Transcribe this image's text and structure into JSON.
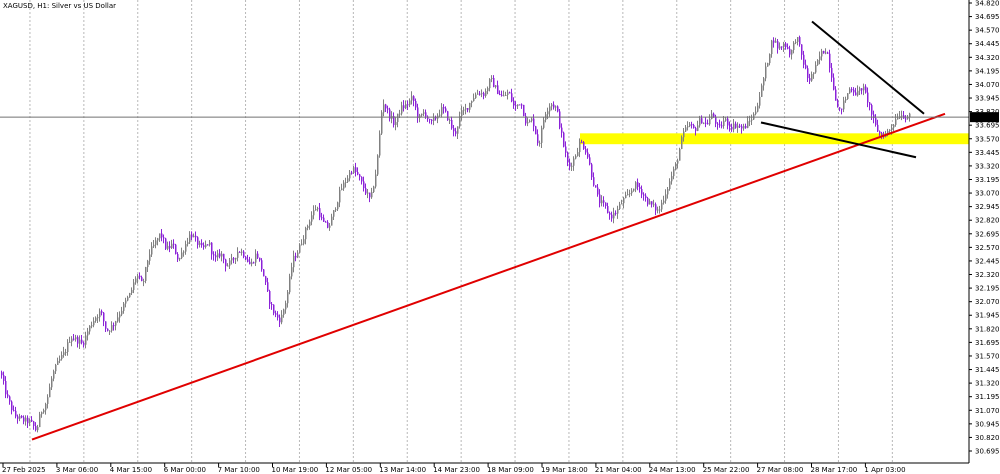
{
  "chart_data": {
    "type": "candlestick",
    "title": "XAGUSD, H1:  Silver vs US Dollar",
    "current_price": "33.769",
    "y_ticks": [
      "34.820",
      "34.695",
      "34.570",
      "34.445",
      "34.320",
      "34.195",
      "34.070",
      "33.945",
      "33.820",
      "33.695",
      "33.570",
      "33.445",
      "33.320",
      "33.195",
      "33.070",
      "32.945",
      "32.820",
      "32.695",
      "32.570",
      "32.445",
      "32.320",
      "32.195",
      "32.070",
      "31.945",
      "31.820",
      "31.695",
      "31.570",
      "31.445",
      "31.320",
      "31.195",
      "31.070",
      "30.945",
      "30.820",
      "30.695"
    ],
    "ylim": [
      30.64,
      34.83
    ],
    "x_ticks": [
      "27 Feb 2025",
      "3 Mar 06:00",
      "4 Mar 15:00",
      "6 Mar 00:00",
      "7 Mar 10:00",
      "10 Mar 19:00",
      "12 Mar 05:00",
      "13 Mar 14:00",
      "14 Mar 23:00",
      "18 Mar 09:00",
      "19 Mar 18:00",
      "21 Mar 04:00",
      "24 Mar 13:00",
      "25 Mar 22:00",
      "27 Mar 08:00",
      "28 Mar 17:00",
      "1 Apr 03:00"
    ],
    "price_path": [
      [
        0,
        31.42
      ],
      [
        6,
        31.2
      ],
      [
        14,
        31.02
      ],
      [
        22,
        30.98
      ],
      [
        30,
        30.96
      ],
      [
        36,
        30.88
      ],
      [
        40,
        31.05
      ],
      [
        46,
        31.15
      ],
      [
        52,
        31.4
      ],
      [
        58,
        31.52
      ],
      [
        64,
        31.6
      ],
      [
        70,
        31.75
      ],
      [
        76,
        31.72
      ],
      [
        82,
        31.68
      ],
      [
        88,
        31.82
      ],
      [
        94,
        31.92
      ],
      [
        100,
        31.98
      ],
      [
        106,
        31.8
      ],
      [
        112,
        31.85
      ],
      [
        118,
        31.95
      ],
      [
        124,
        32.05
      ],
      [
        130,
        32.15
      ],
      [
        136,
        32.32
      ],
      [
        142,
        32.22
      ],
      [
        148,
        32.5
      ],
      [
        154,
        32.6
      ],
      [
        160,
        32.7
      ],
      [
        166,
        32.55
      ],
      [
        172,
        32.6
      ],
      [
        178,
        32.45
      ],
      [
        184,
        32.58
      ],
      [
        190,
        32.7
      ],
      [
        196,
        32.62
      ],
      [
        202,
        32.55
      ],
      [
        208,
        32.62
      ],
      [
        214,
        32.45
      ],
      [
        220,
        32.52
      ],
      [
        226,
        32.4
      ],
      [
        232,
        32.45
      ],
      [
        238,
        32.55
      ],
      [
        244,
        32.5
      ],
      [
        250,
        32.4
      ],
      [
        256,
        32.52
      ],
      [
        262,
        32.35
      ],
      [
        268,
        32.1
      ],
      [
        274,
        31.95
      ],
      [
        280,
        31.9
      ],
      [
        286,
        32.1
      ],
      [
        292,
        32.45
      ],
      [
        298,
        32.55
      ],
      [
        304,
        32.7
      ],
      [
        310,
        32.85
      ],
      [
        316,
        32.95
      ],
      [
        322,
        32.8
      ],
      [
        328,
        32.75
      ],
      [
        334,
        32.92
      ],
      [
        340,
        33.1
      ],
      [
        346,
        33.2
      ],
      [
        352,
        33.3
      ],
      [
        358,
        33.22
      ],
      [
        364,
        33.1
      ],
      [
        370,
        33.0
      ],
      [
        376,
        33.3
      ],
      [
        382,
        33.92
      ],
      [
        388,
        33.8
      ],
      [
        394,
        33.7
      ],
      [
        400,
        33.85
      ],
      [
        406,
        33.88
      ],
      [
        412,
        33.95
      ],
      [
        418,
        33.75
      ],
      [
        424,
        33.82
      ],
      [
        430,
        33.7
      ],
      [
        436,
        33.78
      ],
      [
        442,
        33.85
      ],
      [
        448,
        33.75
      ],
      [
        454,
        33.6
      ],
      [
        460,
        33.8
      ],
      [
        466,
        33.85
      ],
      [
        472,
        33.95
      ],
      [
        478,
        34.0
      ],
      [
        484,
        33.98
      ],
      [
        490,
        34.12
      ],
      [
        496,
        34.02
      ],
      [
        502,
        33.95
      ],
      [
        508,
        34.0
      ],
      [
        514,
        33.85
      ],
      [
        520,
        33.92
      ],
      [
        526,
        33.7
      ],
      [
        532,
        33.75
      ],
      [
        538,
        33.5
      ],
      [
        544,
        33.8
      ],
      [
        550,
        33.9
      ],
      [
        556,
        33.85
      ],
      [
        562,
        33.55
      ],
      [
        568,
        33.3
      ],
      [
        574,
        33.4
      ],
      [
        580,
        33.55
      ],
      [
        586,
        33.45
      ],
      [
        592,
        33.2
      ],
      [
        598,
        33.0
      ],
      [
        604,
        32.95
      ],
      [
        610,
        32.85
      ],
      [
        616,
        32.9
      ],
      [
        622,
        33.0
      ],
      [
        628,
        33.05
      ],
      [
        634,
        33.15
      ],
      [
        640,
        33.1
      ],
      [
        646,
        33.0
      ],
      [
        652,
        32.95
      ],
      [
        658,
        32.9
      ],
      [
        664,
        33.05
      ],
      [
        670,
        33.2
      ],
      [
        676,
        33.35
      ],
      [
        682,
        33.6
      ],
      [
        688,
        33.7
      ],
      [
        694,
        33.65
      ],
      [
        700,
        33.75
      ],
      [
        706,
        33.7
      ],
      [
        712,
        33.8
      ],
      [
        718,
        33.65
      ],
      [
        724,
        33.75
      ],
      [
        730,
        33.68
      ],
      [
        736,
        33.7
      ],
      [
        742,
        33.66
      ],
      [
        748,
        33.72
      ],
      [
        754,
        33.8
      ],
      [
        760,
        34.0
      ],
      [
        766,
        34.25
      ],
      [
        772,
        34.5
      ],
      [
        778,
        34.4
      ],
      [
        784,
        34.45
      ],
      [
        790,
        34.35
      ],
      [
        796,
        34.52
      ],
      [
        802,
        34.3
      ],
      [
        808,
        34.1
      ],
      [
        814,
        34.2
      ],
      [
        820,
        34.35
      ],
      [
        826,
        34.4
      ],
      [
        832,
        34.1
      ],
      [
        838,
        33.8
      ],
      [
        844,
        33.92
      ],
      [
        850,
        34.05
      ],
      [
        856,
        33.98
      ],
      [
        862,
        34.05
      ],
      [
        868,
        33.9
      ],
      [
        874,
        33.7
      ],
      [
        880,
        33.6
      ],
      [
        886,
        33.62
      ],
      [
        892,
        33.7
      ],
      [
        898,
        33.8
      ],
      [
        904,
        33.78
      ],
      [
        910,
        33.77
      ]
    ],
    "annotations": {
      "support_zone": {
        "from": 33.52,
        "to": 33.62,
        "color": "#ffff00"
      },
      "trendline_color": "#e00000",
      "wedge_color": "#000000"
    },
    "bull_color": "#808080",
    "bear_color": "#8b22d8",
    "grid": true
  }
}
